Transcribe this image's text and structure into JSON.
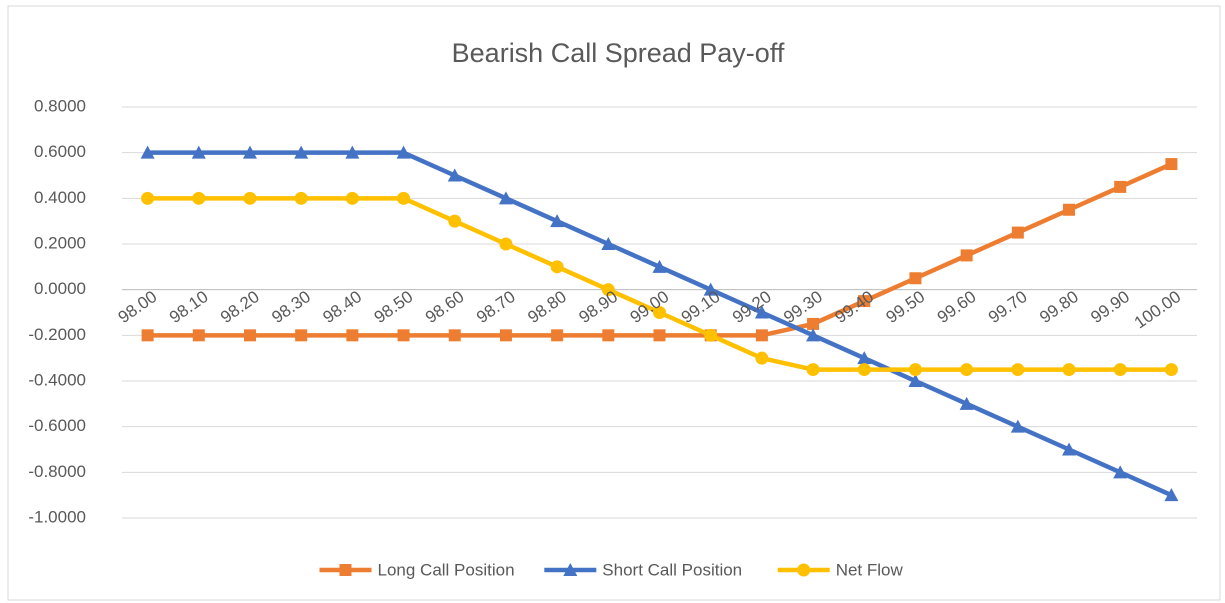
{
  "chart_data": {
    "type": "line",
    "title": "Bearish Call Spread Pay-off",
    "categories": [
      "98.00",
      "98.10",
      "98.20",
      "98.30",
      "98.40",
      "98.50",
      "98.60",
      "98.70",
      "98.80",
      "98.90",
      "99.00",
      "99.10",
      "99.20",
      "99.30",
      "99.40",
      "99.50",
      "99.60",
      "99.70",
      "99.80",
      "99.90",
      "100.00"
    ],
    "series": [
      {
        "name": "Long Call Position",
        "color": "#ed7d31",
        "marker": "square",
        "values": [
          -0.2,
          -0.2,
          -0.2,
          -0.2,
          -0.2,
          -0.2,
          -0.2,
          -0.2,
          -0.2,
          -0.2,
          -0.2,
          -0.2,
          -0.2,
          -0.15,
          -0.05,
          0.05,
          0.15,
          0.25,
          0.35,
          0.45,
          0.55
        ]
      },
      {
        "name": "Short Call Position",
        "color": "#4472c4",
        "marker": "triangle",
        "values": [
          0.6,
          0.6,
          0.6,
          0.6,
          0.6,
          0.6,
          0.5,
          0.4,
          0.3,
          0.2,
          0.1,
          0,
          -0.1,
          -0.2,
          -0.3,
          -0.4,
          -0.5,
          -0.6,
          -0.7,
          -0.8,
          -0.9
        ]
      },
      {
        "name": "Net Flow",
        "color": "#ffc000",
        "marker": "circle",
        "values": [
          0.4,
          0.4,
          0.4,
          0.4,
          0.4,
          0.4,
          0.3,
          0.2,
          0.1,
          0,
          -0.1,
          -0.2,
          -0.3,
          -0.35,
          -0.35,
          -0.35,
          -0.35,
          -0.35,
          -0.35,
          -0.35,
          -0.35
        ]
      }
    ],
    "ylim": [
      -1,
      0.8
    ],
    "yticks": [
      {
        "value": -1,
        "label": "-1.0000"
      },
      {
        "value": -0.8,
        "label": "-0.8000"
      },
      {
        "value": -0.6,
        "label": "-0.6000"
      },
      {
        "value": -0.4,
        "label": "-0.4000"
      },
      {
        "value": -0.2,
        "label": "-0.2000"
      },
      {
        "value": 0,
        "label": "0.0000"
      },
      {
        "value": 0.2,
        "label": "0.2000"
      },
      {
        "value": 0.4,
        "label": "0.4000"
      },
      {
        "value": 0.6,
        "label": "0.6000"
      },
      {
        "value": 0.8,
        "label": "0.8000"
      }
    ],
    "grid": true,
    "legend": "bottom"
  }
}
